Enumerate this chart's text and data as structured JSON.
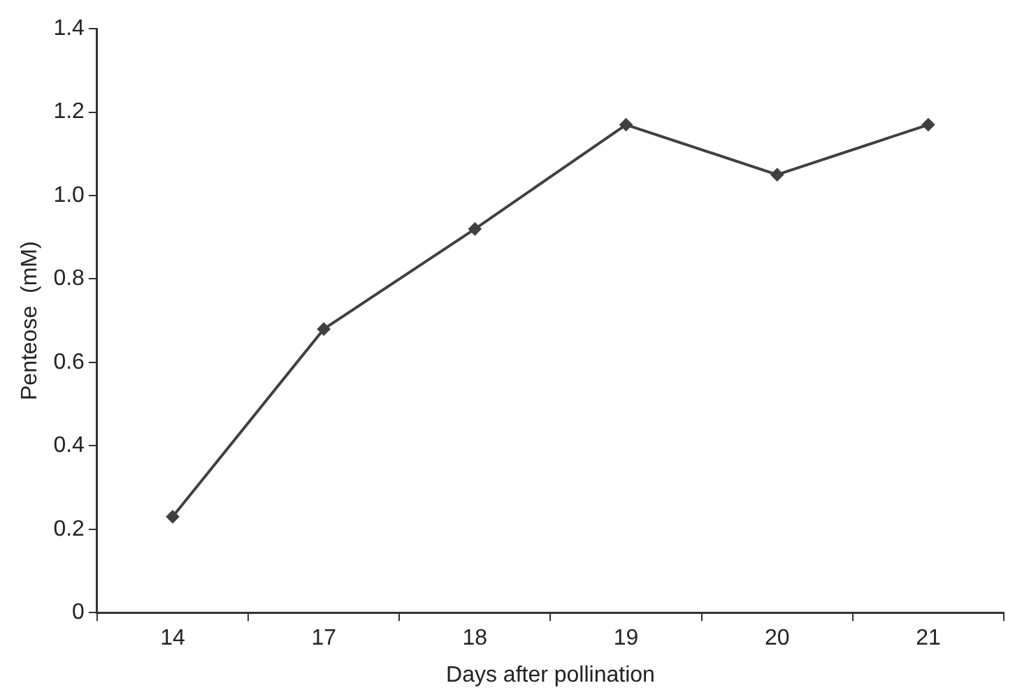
{
  "chart_data": {
    "type": "line",
    "xlabel": "Days after pollination",
    "ylabel": "Penteose  (mM)",
    "categories": [
      "14",
      "17",
      "18",
      "19",
      "20",
      "21"
    ],
    "series": [
      {
        "color": "#404040",
        "values": [
          0.23,
          0.68,
          0.92,
          1.17,
          1.05,
          1.17
        ]
      }
    ],
    "ylim": [
      0,
      1.4
    ],
    "yticks": [
      0,
      0.2,
      0.4,
      0.6,
      0.8,
      {
        "value": 1,
        "label": "1.0"
      },
      1.2,
      1.4
    ],
    "grid": false,
    "legend": false,
    "marker": "diamond",
    "line_style": "solid"
  }
}
